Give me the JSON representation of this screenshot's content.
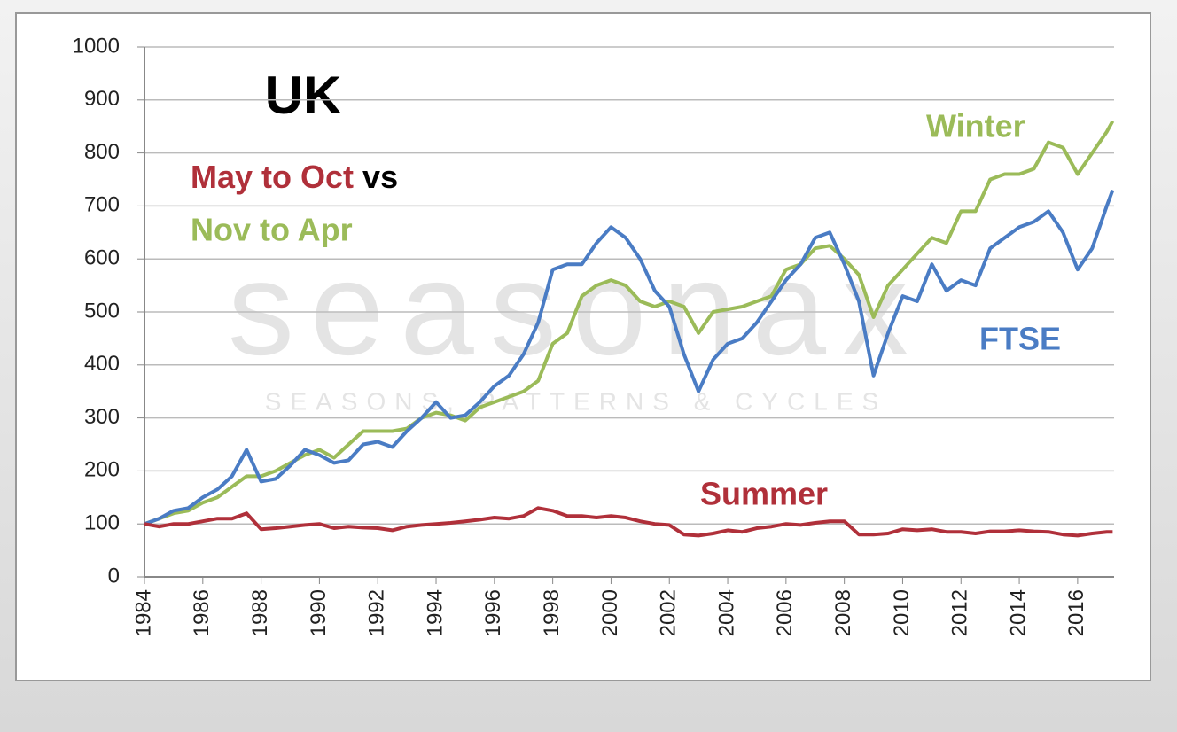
{
  "chart_data": {
    "type": "line",
    "title": "UK",
    "subtitle_lines": [
      [
        "May to Oct",
        "vs"
      ],
      [
        "Nov to Apr"
      ]
    ],
    "watermark": "seasonax",
    "watermark_tagline": "SEASONS, PATTERNS & CYCLES",
    "x": [
      1984,
      1984.5,
      1985,
      1985.5,
      1986,
      1986.5,
      1987,
      1987.5,
      1988,
      1988.5,
      1989,
      1989.5,
      1990,
      1990.5,
      1991,
      1991.5,
      1992,
      1992.5,
      1993,
      1993.5,
      1994,
      1994.5,
      1995,
      1995.5,
      1996,
      1996.5,
      1997,
      1997.5,
      1998,
      1998.5,
      1999,
      1999.5,
      2000,
      2000.5,
      2001,
      2001.5,
      2002,
      2002.5,
      2003,
      2003.5,
      2004,
      2004.5,
      2005,
      2005.5,
      2006,
      2006.5,
      2007,
      2007.5,
      2008,
      2008.5,
      2009,
      2009.5,
      2010,
      2010.5,
      2011,
      2011.5,
      2012,
      2012.5,
      2013,
      2013.5,
      2014,
      2014.5,
      2015,
      2015.5,
      2016,
      2016.5,
      2017,
      2017.2
    ],
    "series": [
      {
        "name": "Winter",
        "color": "#9bbb59",
        "values": [
          100,
          110,
          120,
          125,
          140,
          150,
          170,
          190,
          190,
          200,
          215,
          230,
          240,
          225,
          250,
          275,
          275,
          275,
          280,
          300,
          310,
          305,
          295,
          320,
          330,
          340,
          350,
          370,
          440,
          460,
          530,
          550,
          560,
          550,
          520,
          510,
          520,
          510,
          460,
          500,
          505,
          510,
          520,
          530,
          580,
          590,
          620,
          625,
          600,
          570,
          490,
          550,
          580,
          610,
          640,
          630,
          690,
          690,
          750,
          760,
          760,
          770,
          820,
          810,
          760,
          800,
          840,
          860
        ]
      },
      {
        "name": "FTSE",
        "color": "#4a7cc4",
        "values": [
          100,
          110,
          125,
          130,
          150,
          165,
          190,
          240,
          180,
          185,
          210,
          240,
          230,
          215,
          220,
          250,
          255,
          245,
          275,
          300,
          330,
          300,
          305,
          330,
          360,
          380,
          420,
          480,
          580,
          590,
          590,
          630,
          660,
          640,
          600,
          540,
          510,
          420,
          350,
          410,
          440,
          450,
          480,
          520,
          560,
          590,
          640,
          650,
          590,
          520,
          380,
          460,
          530,
          520,
          590,
          540,
          560,
          550,
          620,
          640,
          660,
          670,
          690,
          650,
          580,
          620,
          700,
          730
        ]
      },
      {
        "name": "Summer",
        "color": "#b0303a",
        "values": [
          100,
          95,
          100,
          100,
          105,
          110,
          110,
          120,
          90,
          92,
          95,
          98,
          100,
          92,
          95,
          93,
          92,
          88,
          95,
          98,
          100,
          102,
          105,
          108,
          112,
          110,
          115,
          130,
          125,
          115,
          115,
          112,
          115,
          112,
          105,
          100,
          98,
          80,
          78,
          82,
          88,
          85,
          92,
          95,
          100,
          98,
          102,
          105,
          105,
          80,
          80,
          82,
          90,
          88,
          90,
          85,
          85,
          82,
          86,
          86,
          88,
          86,
          85,
          80,
          78,
          82,
          85,
          85
        ]
      }
    ],
    "xlim": [
      1984,
      2017.25
    ],
    "xticks": [
      1984,
      1986,
      1988,
      1990,
      1992,
      1994,
      1996,
      1998,
      2000,
      2002,
      2004,
      2006,
      2008,
      2010,
      2012,
      2014,
      2016
    ],
    "ylim": [
      0,
      1000
    ],
    "yticks": [
      0,
      100,
      200,
      300,
      400,
      500,
      600,
      700,
      800,
      900,
      1000
    ],
    "grid": true
  }
}
